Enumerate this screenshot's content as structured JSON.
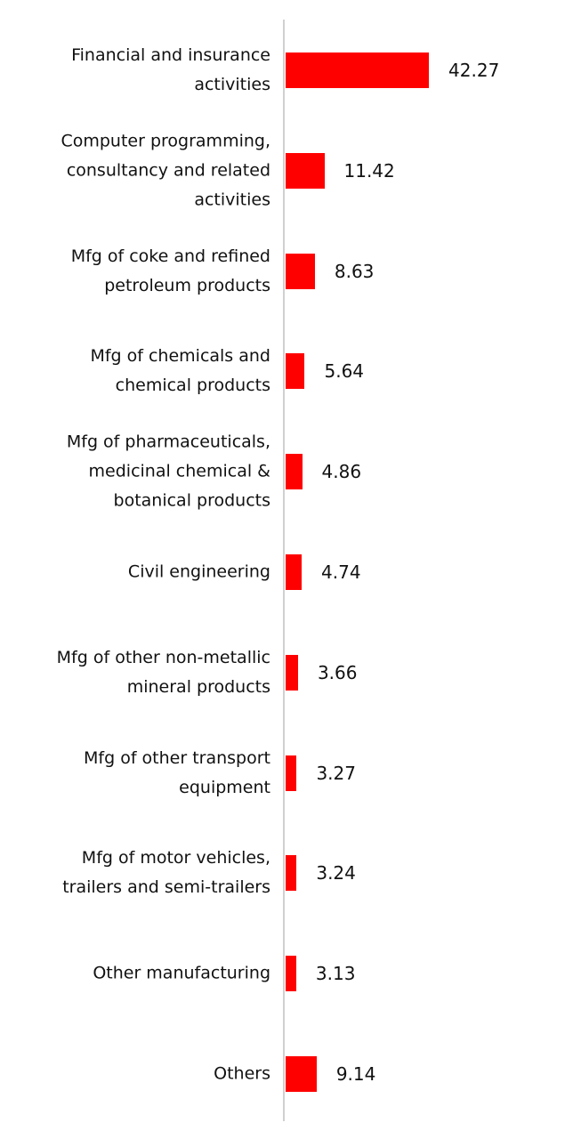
{
  "chart_data": {
    "type": "bar",
    "orientation": "horizontal",
    "color": "#ff0000",
    "categories": [
      "Financial and insurance activities",
      "Computer programming, consultancy and related activities",
      "Mfg of coke and refined petroleum products",
      "Mfg of chemicals and chemical products",
      "Mfg of pharmaceuticals, medicinal chemical & botanical products",
      "Civil engineering",
      "Mfg of other non-metallic mineral products",
      "Mfg of other transport equipment",
      "Mfg of motor vehicles, trailers and semi-trailers",
      "Other manufacturing",
      "Others"
    ],
    "values": [
      42.27,
      11.42,
      8.63,
      5.64,
      4.86,
      4.74,
      3.66,
      3.27,
      3.24,
      3.13,
      9.14
    ]
  }
}
